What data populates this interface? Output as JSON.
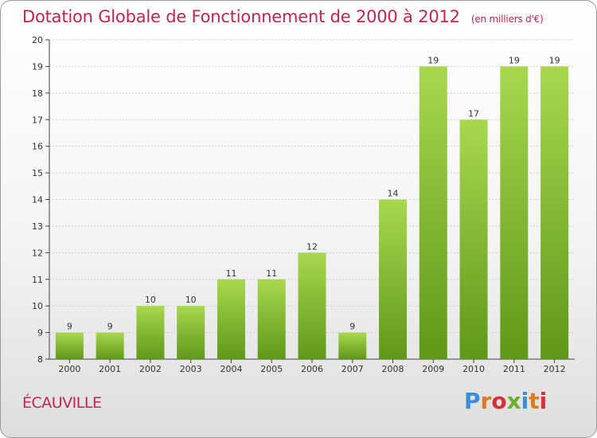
{
  "title": "Dotation Globale de Fonctionnement de 2000 à 2012",
  "unit_note": "(en milliers d'€)",
  "commune": "ÉCAUVILLE",
  "logo": {
    "text": "Proxiti",
    "letter_colors": [
      "#3a8fd8",
      "#e07a1f",
      "#d7303a",
      "#6ab02e",
      "#3a8fd8",
      "#e07a1f",
      "#d7303a"
    ]
  },
  "colors": {
    "title": "#c2254f",
    "bar_top": "#a8d84e",
    "bar_bottom": "#5f9818",
    "axis": "#444444",
    "grid": "#cfcfcf"
  },
  "chart_data": {
    "type": "bar",
    "categories": [
      "2000",
      "2001",
      "2002",
      "2003",
      "2004",
      "2005",
      "2006",
      "2007",
      "2008",
      "2009",
      "2010",
      "2011",
      "2012"
    ],
    "values": [
      9,
      9,
      10,
      10,
      11,
      11,
      12,
      9,
      14,
      19,
      17,
      19,
      19
    ],
    "data_labels": [
      "9",
      "9",
      "10",
      "10",
      "11",
      "11",
      "12",
      "9",
      "14",
      "19",
      "17",
      "19",
      "19"
    ],
    "ylim": [
      8,
      20
    ],
    "yticks": [
      8,
      9,
      10,
      11,
      12,
      13,
      14,
      15,
      16,
      17,
      18,
      19,
      20
    ],
    "grid": true,
    "xlabel": "",
    "ylabel": ""
  }
}
